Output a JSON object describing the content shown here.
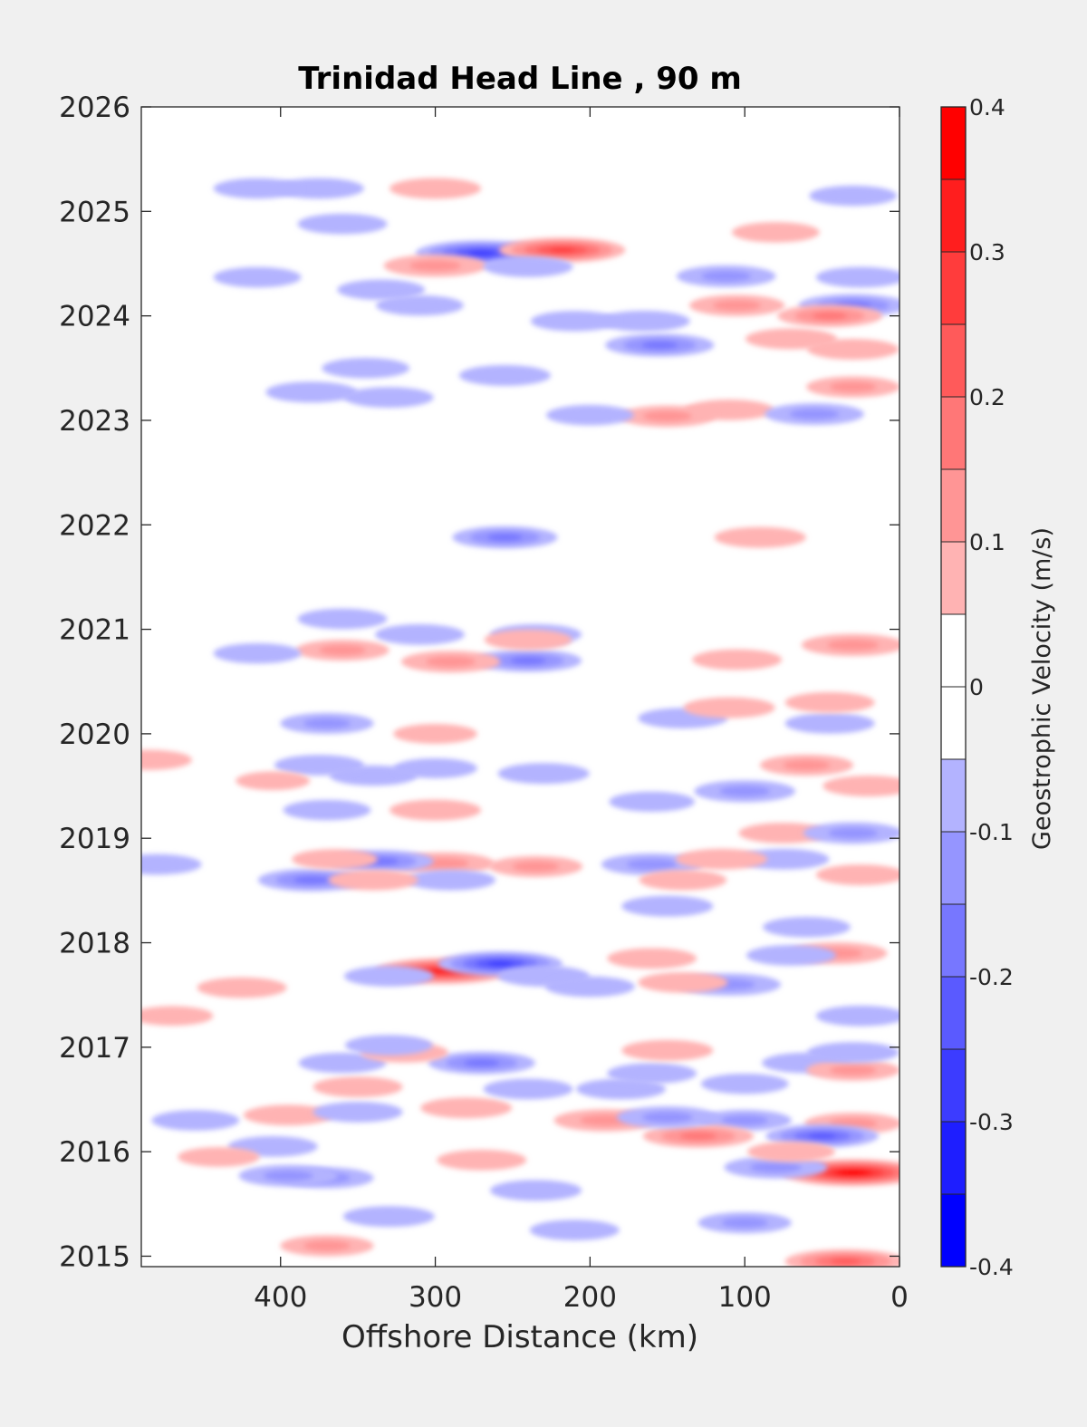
{
  "chart_data": {
    "type": "heatmap",
    "subtype": "filled-contour",
    "title": "Trinidad Head Line , 90 m",
    "xlabel": "Offshore Distance (km)",
    "ylabel": "",
    "x_reversed": true,
    "xlim": [
      490,
      0
    ],
    "ylim": [
      2014.9,
      2026
    ],
    "x_ticks": [
      400,
      300,
      200,
      100,
      0
    ],
    "y_ticks": [
      2015,
      2016,
      2017,
      2018,
      2019,
      2020,
      2021,
      2022,
      2023,
      2024,
      2025,
      2026
    ],
    "colorbar": {
      "label": "Geostrophic Velocity (m/s)",
      "range": [
        -0.4,
        0.4
      ],
      "step": 0.05,
      "ticks": [
        -0.4,
        -0.3,
        -0.2,
        -0.1,
        0,
        0.1,
        0.2,
        0.3,
        0.4
      ],
      "tick_labels": [
        "-0.4",
        "-0.3",
        "-0.2",
        "-0.1",
        "0",
        "0.1",
        "0.2",
        "0.3",
        "0.4"
      ]
    },
    "colors": {
      "positive_max": "#ff0000",
      "negative_max": "#0000ff",
      "zero": "#ffffff"
    },
    "grid": false,
    "features": [
      {
        "x": 295,
        "y": 2017.73,
        "v": 0.32
      },
      {
        "x": 258,
        "y": 2017.8,
        "v": -0.26
      },
      {
        "x": 230,
        "y": 2017.68,
        "v": -0.09
      },
      {
        "x": 330,
        "y": 2017.68,
        "v": -0.08
      },
      {
        "x": 40,
        "y": 2017.9,
        "v": 0.13
      },
      {
        "x": 70,
        "y": 2017.88,
        "v": -0.08
      },
      {
        "x": 160,
        "y": 2017.85,
        "v": 0.08
      },
      {
        "x": 110,
        "y": 2017.6,
        "v": -0.15
      },
      {
        "x": 140,
        "y": 2017.62,
        "v": 0.08
      },
      {
        "x": 200,
        "y": 2017.58,
        "v": -0.08
      },
      {
        "x": 25,
        "y": 2017.3,
        "v": -0.08
      },
      {
        "x": 425,
        "y": 2017.57,
        "v": 0.08
      },
      {
        "x": 270,
        "y": 2024.6,
        "v": -0.3
      },
      {
        "x": 218,
        "y": 2024.63,
        "v": 0.27
      },
      {
        "x": 300,
        "y": 2024.48,
        "v": 0.15
      },
      {
        "x": 240,
        "y": 2024.47,
        "v": -0.08
      },
      {
        "x": 155,
        "y": 2023.72,
        "v": -0.18
      },
      {
        "x": 165,
        "y": 2023.95,
        "v": -0.09
      },
      {
        "x": 255,
        "y": 2023.43,
        "v": -0.09
      },
      {
        "x": 105,
        "y": 2024.1,
        "v": 0.11
      },
      {
        "x": 70,
        "y": 2023.78,
        "v": 0.09
      },
      {
        "x": 30,
        "y": 2024.1,
        "v": -0.18
      },
      {
        "x": 45,
        "y": 2024.0,
        "v": 0.16
      },
      {
        "x": 25,
        "y": 2024.37,
        "v": -0.08
      },
      {
        "x": 112,
        "y": 2024.38,
        "v": -0.13
      },
      {
        "x": 30,
        "y": 2023.68,
        "v": 0.09
      },
      {
        "x": 30,
        "y": 2023.32,
        "v": 0.1
      },
      {
        "x": 110,
        "y": 2023.1,
        "v": 0.08
      },
      {
        "x": 150,
        "y": 2023.04,
        "v": 0.12
      },
      {
        "x": 55,
        "y": 2023.06,
        "v": -0.13
      },
      {
        "x": 200,
        "y": 2023.05,
        "v": -0.07
      },
      {
        "x": 380,
        "y": 2023.27,
        "v": -0.09
      },
      {
        "x": 330,
        "y": 2023.22,
        "v": -0.08
      },
      {
        "x": 345,
        "y": 2023.5,
        "v": -0.07
      },
      {
        "x": 360,
        "y": 2024.88,
        "v": -0.08
      },
      {
        "x": 375,
        "y": 2025.22,
        "v": -0.08
      },
      {
        "x": 300,
        "y": 2025.22,
        "v": 0.09
      },
      {
        "x": 415,
        "y": 2025.22,
        "v": -0.07
      },
      {
        "x": 415,
        "y": 2024.37,
        "v": -0.07
      },
      {
        "x": 335,
        "y": 2024.25,
        "v": -0.07
      },
      {
        "x": 310,
        "y": 2024.1,
        "v": -0.07
      },
      {
        "x": 210,
        "y": 2023.95,
        "v": -0.07
      },
      {
        "x": 80,
        "y": 2024.8,
        "v": 0.07
      },
      {
        "x": 30,
        "y": 2025.15,
        "v": -0.07
      },
      {
        "x": 255,
        "y": 2021.88,
        "v": -0.16
      },
      {
        "x": 90,
        "y": 2021.88,
        "v": 0.09
      },
      {
        "x": 240,
        "y": 2020.7,
        "v": -0.17
      },
      {
        "x": 290,
        "y": 2020.69,
        "v": 0.13
      },
      {
        "x": 235,
        "y": 2020.95,
        "v": -0.09
      },
      {
        "x": 310,
        "y": 2020.95,
        "v": -0.08
      },
      {
        "x": 360,
        "y": 2021.1,
        "v": -0.08
      },
      {
        "x": 360,
        "y": 2020.8,
        "v": 0.1
      },
      {
        "x": 30,
        "y": 2020.85,
        "v": 0.15
      },
      {
        "x": 105,
        "y": 2020.71,
        "v": 0.08
      },
      {
        "x": 415,
        "y": 2020.77,
        "v": -0.07
      },
      {
        "x": 240,
        "y": 2020.9,
        "v": 0.07
      },
      {
        "x": 30,
        "y": 2015.8,
        "v": 0.36
      },
      {
        "x": 30,
        "y": 2016.27,
        "v": 0.12
      },
      {
        "x": 50,
        "y": 2016.15,
        "v": -0.2
      },
      {
        "x": 100,
        "y": 2016.3,
        "v": -0.1
      },
      {
        "x": 130,
        "y": 2016.15,
        "v": 0.19
      },
      {
        "x": 190,
        "y": 2016.3,
        "v": 0.15
      },
      {
        "x": 150,
        "y": 2016.33,
        "v": -0.14
      },
      {
        "x": 80,
        "y": 2015.85,
        "v": -0.15
      },
      {
        "x": 70,
        "y": 2016.0,
        "v": 0.07
      },
      {
        "x": 35,
        "y": 2014.95,
        "v": 0.24
      },
      {
        "x": 100,
        "y": 2015.32,
        "v": -0.1
      },
      {
        "x": 235,
        "y": 2015.63,
        "v": -0.09
      },
      {
        "x": 210,
        "y": 2015.25,
        "v": -0.08
      },
      {
        "x": 370,
        "y": 2015.75,
        "v": -0.1
      },
      {
        "x": 395,
        "y": 2015.77,
        "v": -0.13
      },
      {
        "x": 330,
        "y": 2015.38,
        "v": -0.09
      },
      {
        "x": 370,
        "y": 2015.1,
        "v": 0.1
      },
      {
        "x": 270,
        "y": 2015.92,
        "v": 0.08
      },
      {
        "x": 405,
        "y": 2016.05,
        "v": -0.08
      },
      {
        "x": 395,
        "y": 2016.35,
        "v": 0.08
      },
      {
        "x": 350,
        "y": 2016.38,
        "v": -0.08
      },
      {
        "x": 280,
        "y": 2016.42,
        "v": 0.09
      },
      {
        "x": 240,
        "y": 2016.6,
        "v": -0.08
      },
      {
        "x": 270,
        "y": 2016.85,
        "v": -0.17
      },
      {
        "x": 180,
        "y": 2016.6,
        "v": -0.08
      },
      {
        "x": 160,
        "y": 2016.75,
        "v": -0.08
      },
      {
        "x": 100,
        "y": 2016.65,
        "v": -0.07
      },
      {
        "x": 60,
        "y": 2016.85,
        "v": -0.08
      },
      {
        "x": 30,
        "y": 2016.78,
        "v": 0.1
      },
      {
        "x": 30,
        "y": 2016.95,
        "v": -0.09
      },
      {
        "x": 150,
        "y": 2016.97,
        "v": 0.09
      },
      {
        "x": 350,
        "y": 2016.62,
        "v": 0.08
      },
      {
        "x": 360,
        "y": 2016.85,
        "v": -0.07
      },
      {
        "x": 455,
        "y": 2016.3,
        "v": -0.07
      },
      {
        "x": 440,
        "y": 2015.95,
        "v": 0.04
      },
      {
        "x": 320,
        "y": 2016.95,
        "v": 0.07
      },
      {
        "x": 330,
        "y": 2017.02,
        "v": -0.07
      },
      {
        "x": 295,
        "y": 2018.76,
        "v": 0.15
      },
      {
        "x": 235,
        "y": 2018.73,
        "v": 0.1
      },
      {
        "x": 335,
        "y": 2018.78,
        "v": -0.16
      },
      {
        "x": 380,
        "y": 2018.6,
        "v": -0.17
      },
      {
        "x": 290,
        "y": 2018.6,
        "v": -0.08
      },
      {
        "x": 150,
        "y": 2018.35,
        "v": -0.09
      },
      {
        "x": 160,
        "y": 2018.75,
        "v": -0.14
      },
      {
        "x": 75,
        "y": 2018.8,
        "v": -0.09
      },
      {
        "x": 115,
        "y": 2018.8,
        "v": 0.09
      },
      {
        "x": 75,
        "y": 2019.05,
        "v": 0.08
      },
      {
        "x": 30,
        "y": 2019.05,
        "v": -0.13
      },
      {
        "x": 25,
        "y": 2018.65,
        "v": 0.08
      },
      {
        "x": 140,
        "y": 2018.6,
        "v": 0.07
      },
      {
        "x": 60,
        "y": 2018.15,
        "v": -0.07
      },
      {
        "x": 340,
        "y": 2018.6,
        "v": 0.08
      },
      {
        "x": 365,
        "y": 2018.8,
        "v": 0.06
      },
      {
        "x": 480,
        "y": 2018.75,
        "v": -0.08
      },
      {
        "x": 470,
        "y": 2017.3,
        "v": 0.04
      },
      {
        "x": 100,
        "y": 2019.45,
        "v": -0.14
      },
      {
        "x": 60,
        "y": 2019.7,
        "v": 0.1
      },
      {
        "x": 230,
        "y": 2019.62,
        "v": -0.09
      },
      {
        "x": 300,
        "y": 2019.27,
        "v": 0.09
      },
      {
        "x": 370,
        "y": 2019.27,
        "v": -0.07
      },
      {
        "x": 340,
        "y": 2019.6,
        "v": -0.07
      },
      {
        "x": 375,
        "y": 2019.7,
        "v": -0.08
      },
      {
        "x": 370,
        "y": 2020.1,
        "v": -0.1
      },
      {
        "x": 300,
        "y": 2020.0,
        "v": 0.05
      },
      {
        "x": 140,
        "y": 2020.15,
        "v": -0.08
      },
      {
        "x": 110,
        "y": 2020.25,
        "v": 0.09
      },
      {
        "x": 45,
        "y": 2020.1,
        "v": -0.08
      },
      {
        "x": 45,
        "y": 2020.3,
        "v": 0.08
      },
      {
        "x": 485,
        "y": 2019.75,
        "v": 0.06
      },
      {
        "x": 20,
        "y": 2019.5,
        "v": 0.09
      },
      {
        "x": 160,
        "y": 2019.35,
        "v": -0.06
      },
      {
        "x": 300,
        "y": 2019.67,
        "v": -0.05
      },
      {
        "x": 405,
        "y": 2019.55,
        "v": 0.0
      }
    ]
  }
}
